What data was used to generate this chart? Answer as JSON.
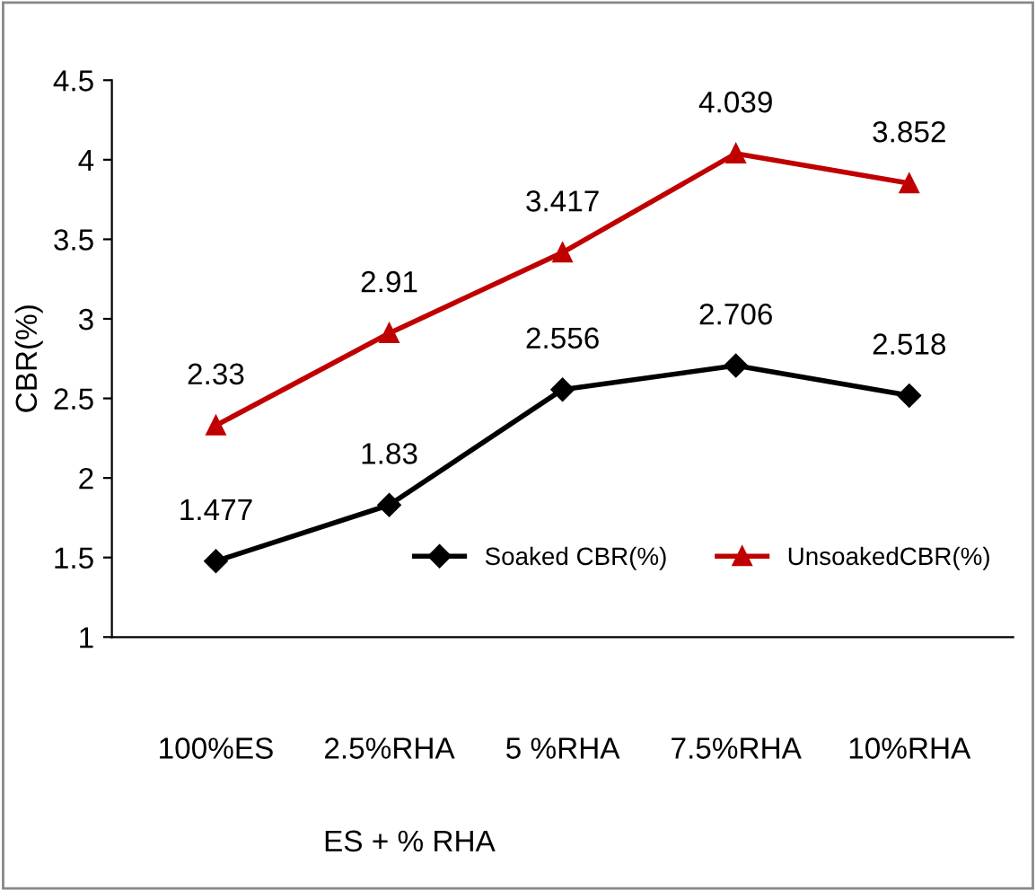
{
  "chart_data": {
    "type": "line",
    "xlabel": "ES + % RHA",
    "ylabel": "CBR(%)",
    "categories": [
      "100%ES",
      "2.5%RHA",
      "5 %RHA",
      "7.5%RHA",
      "10%RHA"
    ],
    "series": [
      {
        "name": "Soaked CBR(%)",
        "color": "#000000",
        "marker": "diamond",
        "values": [
          1.477,
          1.83,
          2.556,
          2.706,
          2.518
        ]
      },
      {
        "name": "UnsoakedCBR(%)",
        "color": "#c00000",
        "marker": "triangle",
        "values": [
          2.33,
          2.91,
          3.417,
          4.039,
          3.852
        ]
      }
    ],
    "ylim": [
      1,
      4.5
    ],
    "yticks": [
      1,
      1.5,
      2,
      2.5,
      3,
      3.5,
      4,
      4.5
    ],
    "grid": false,
    "legend": "lower right",
    "data_labels": true,
    "line_style": "solid"
  }
}
